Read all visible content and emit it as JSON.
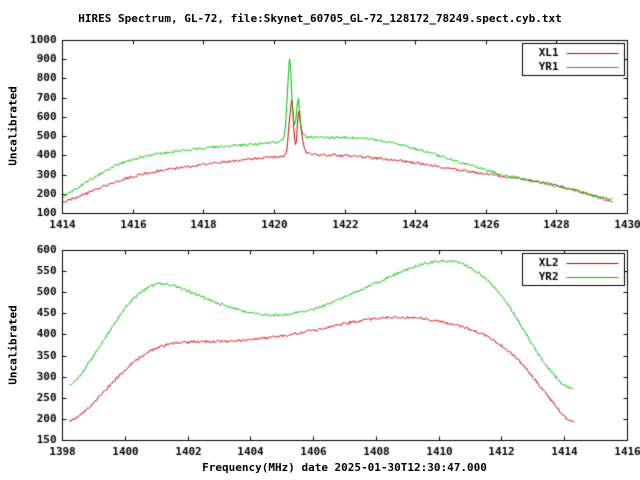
{
  "chart_data": {
    "type": "line",
    "title": "HIRES Spectrum, GL-72, file:Skynet_60705_GL-72_128172_78249.spect.cyb.txt",
    "xlabel": "Frequency(MHz) date 2025-01-30T12:30:47.000",
    "ylabel": "Uncalibrated",
    "background": "#ffffff",
    "axis_color": "#000000",
    "legend_position": "top-right",
    "panels": [
      {
        "name": "upper-spectrum",
        "xlim": [
          1414,
          1430
        ],
        "ylim": [
          100,
          1000
        ],
        "xtick_step": 2,
        "ytick_step": 100,
        "series": [
          {
            "name": "XL1",
            "color": "#cc0000",
            "x": [
              1414.0,
              1414.3,
              1414.6,
              1415.0,
              1415.4,
              1415.8,
              1416.2,
              1416.6,
              1417.0,
              1417.5,
              1418.0,
              1418.5,
              1419.0,
              1419.5,
              1420.0,
              1420.2,
              1420.35,
              1420.44,
              1420.5,
              1420.56,
              1420.62,
              1420.68,
              1420.75,
              1420.85,
              1421.0,
              1421.5,
              1422.0,
              1422.5,
              1423.0,
              1423.5,
              1424.0,
              1424.5,
              1425.0,
              1425.5,
              1426.0,
              1426.5,
              1427.0,
              1427.5,
              1428.0,
              1428.4,
              1428.8,
              1429.2,
              1429.6
            ],
            "y": [
              160,
              178,
              198,
              228,
              258,
              283,
              302,
              317,
              330,
              343,
              356,
              366,
              376,
              386,
              393,
              398,
              425,
              610,
              690,
              515,
              465,
              635,
              550,
              435,
              410,
              404,
              400,
              394,
              386,
              376,
              363,
              349,
              334,
              319,
              306,
              293,
              281,
              266,
              246,
              228,
              206,
              183,
              157
            ]
          },
          {
            "name": "YR1",
            "color": "#00bb00",
            "x": [
              1414.0,
              1414.3,
              1414.6,
              1415.0,
              1415.4,
              1415.8,
              1416.2,
              1416.6,
              1417.0,
              1417.5,
              1418.0,
              1418.5,
              1419.0,
              1419.5,
              1420.0,
              1420.15,
              1420.3,
              1420.38,
              1420.44,
              1420.5,
              1420.56,
              1420.62,
              1420.68,
              1420.75,
              1420.85,
              1421.0,
              1421.5,
              1422.0,
              1422.4,
              1422.8,
              1423.2,
              1423.6,
              1424.0,
              1424.4,
              1424.8,
              1425.2,
              1425.6,
              1426.0,
              1426.4,
              1426.8,
              1427.2,
              1427.6,
              1428.0,
              1428.4,
              1428.8,
              1429.2,
              1429.6
            ],
            "y": [
              190,
              220,
              255,
              300,
              340,
              370,
              392,
              408,
              418,
              430,
              440,
              448,
              455,
              462,
              468,
              474,
              520,
              760,
              910,
              690,
              560,
              610,
              700,
              555,
              505,
              497,
              495,
              495,
              492,
              485,
              472,
              456,
              436,
              415,
              393,
              370,
              348,
              325,
              305,
              288,
              272,
              257,
              242,
              224,
              204,
              187,
              172
            ]
          }
        ]
      },
      {
        "name": "lower-spectrum",
        "xlim": [
          1398,
          1416
        ],
        "ylim": [
          150,
          600
        ],
        "xtick_step": 2,
        "ytick_step": 50,
        "series": [
          {
            "name": "XL2",
            "color": "#cc0000",
            "x": [
              1398.2,
              1398.5,
              1398.8,
              1399.2,
              1399.6,
              1400.0,
              1400.4,
              1400.8,
              1401.2,
              1401.6,
              1402.0,
              1402.5,
              1403.0,
              1403.5,
              1404.0,
              1404.5,
              1405.0,
              1405.5,
              1406.0,
              1406.5,
              1407.0,
              1407.5,
              1408.0,
              1408.5,
              1409.0,
              1409.5,
              1410.0,
              1410.5,
              1411.0,
              1411.5,
              1412.0,
              1412.4,
              1412.8,
              1413.2,
              1413.6,
              1414.0,
              1414.3
            ],
            "y": [
              195,
              207,
              226,
              256,
              288,
              318,
              343,
              362,
              374,
              380,
              383,
              384,
              385,
              386,
              389,
              393,
              398,
              404,
              411,
              419,
              427,
              434,
              439,
              442,
              441,
              438,
              432,
              424,
              413,
              398,
              374,
              350,
              317,
              280,
              242,
              207,
              194
            ]
          },
          {
            "name": "YR2",
            "color": "#00bb00",
            "x": [
              1398.2,
              1398.5,
              1398.8,
              1399.2,
              1399.6,
              1400.0,
              1400.4,
              1400.8,
              1401.1,
              1401.4,
              1401.8,
              1402.2,
              1402.6,
              1403.0,
              1403.4,
              1403.8,
              1404.2,
              1404.6,
              1405.0,
              1405.4,
              1405.8,
              1406.2,
              1406.6,
              1407.0,
              1407.4,
              1407.8,
              1408.2,
              1408.6,
              1409.0,
              1409.4,
              1409.8,
              1410.1,
              1410.4,
              1410.8,
              1411.2,
              1411.6,
              1412.0,
              1412.4,
              1412.8,
              1413.2,
              1413.6,
              1414.0,
              1414.3
            ],
            "y": [
              280,
              298,
              330,
              375,
              420,
              465,
              495,
              515,
              521,
              519,
              510,
              498,
              486,
              474,
              464,
              456,
              450,
              447,
              448,
              452,
              458,
              466,
              477,
              490,
              503,
              517,
              530,
              543,
              556,
              566,
              573,
              576,
              574,
              566,
              550,
              525,
              492,
              448,
              398,
              350,
              310,
              280,
              272
            ]
          }
        ]
      }
    ]
  }
}
